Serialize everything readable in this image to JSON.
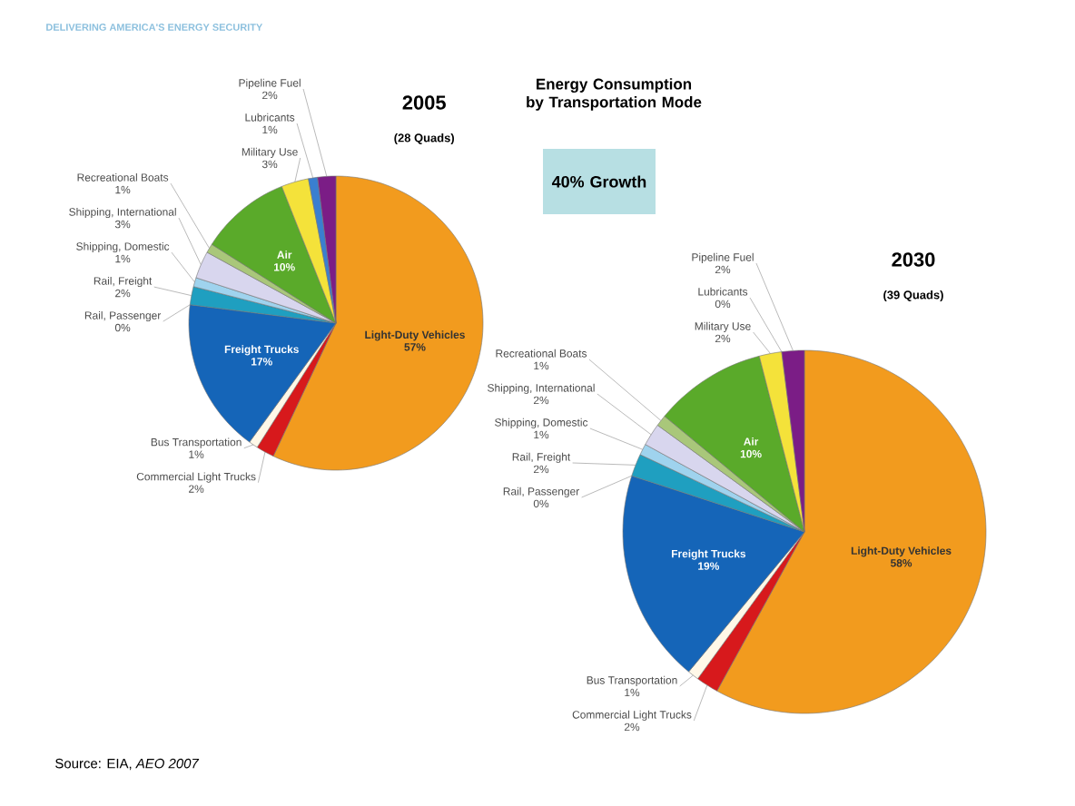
{
  "chart_data": [
    {
      "type": "pie",
      "title": "2005",
      "subtitle": "(28 Quads)",
      "categories": [
        "Light-Duty Vehicles",
        "Commercial Light Trucks",
        "Bus Transportation",
        "Freight Trucks",
        "Rail, Passenger",
        "Rail, Freight",
        "Shipping, Domestic",
        "Shipping, International",
        "Recreational Boats",
        "Air",
        "Military Use",
        "Lubricants",
        "Pipeline Fuel"
      ],
      "values": [
        57,
        2,
        1,
        17,
        0,
        2,
        1,
        3,
        1,
        10,
        3,
        1,
        2
      ],
      "value_labels": [
        "57%",
        "2%",
        "1%",
        "17%",
        "0%",
        "2%",
        "1%",
        "3%",
        "1%",
        "10%",
        "3%",
        "1%",
        "2%"
      ],
      "colors": [
        "#f29b1e",
        "#d7191c",
        "#fff8e8",
        "#1565b8",
        "#1f9fc0",
        "#1f9fc0",
        "#9fd3ee",
        "#d8d6ee",
        "#a9c77a",
        "#5aaa2a",
        "#f4e23a",
        "#3a7fd0",
        "#7b1d86"
      ],
      "annotations": [
        "DELIVERING AMERICA'S ENERGY SECURITY",
        "Energy Consumption by Transportation Mode",
        "40% Growth",
        "Source: EIA, *AEO 2007*"
      ]
    },
    {
      "type": "pie",
      "title": "2030",
      "subtitle": "(39 Quads)",
      "categories": [
        "Light-Duty Vehicles",
        "Commercial Light Trucks",
        "Bus Transportation",
        "Freight Trucks",
        "Rail, Passenger",
        "Rail, Freight",
        "Shipping, Domestic",
        "Shipping, International",
        "Recreational Boats",
        "Air",
        "Military Use",
        "Lubricants",
        "Pipeline Fuel"
      ],
      "values": [
        58,
        2,
        1,
        19,
        0,
        2,
        1,
        2,
        1,
        10,
        2,
        0,
        2
      ],
      "value_labels": [
        "58%",
        "2%",
        "1%",
        "19%",
        "0%",
        "2%",
        "1%",
        "2%",
        "1%",
        "10%",
        "2%",
        "0%",
        "2%"
      ],
      "colors": [
        "#f29b1e",
        "#d7191c",
        "#fff8e8",
        "#1565b8",
        "#1f9fc0",
        "#1f9fc0",
        "#9fd3ee",
        "#d8d6ee",
        "#a9c77a",
        "#5aaa2a",
        "#f4e23a",
        "#3a7fd0",
        "#7b1d86"
      ]
    }
  ]
}
